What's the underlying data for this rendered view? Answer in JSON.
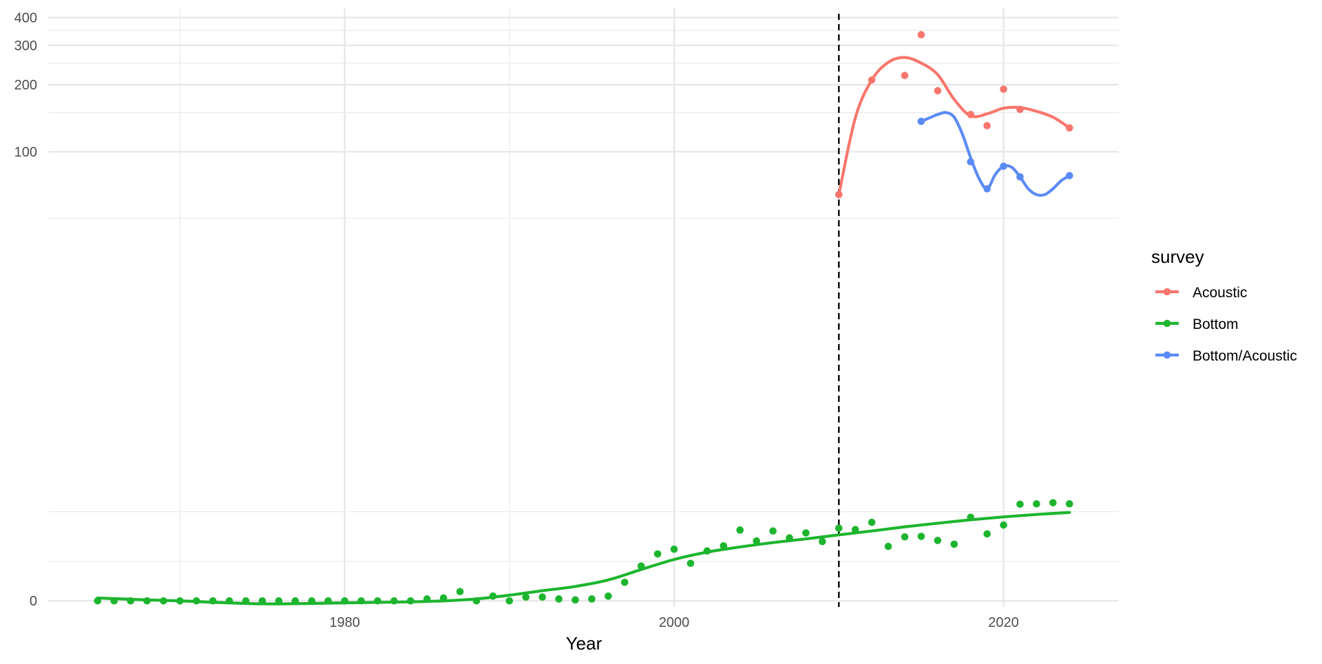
{
  "chart_data": {
    "type": "scatter",
    "title": "",
    "xlabel": "Year",
    "ylabel": "",
    "y_scale": "log1p",
    "x_ticks": [
      1980,
      2000,
      2020
    ],
    "x_tick_labels": [
      "1980",
      "2000",
      "2020"
    ],
    "x_minor_ticks": [
      1970,
      1990,
      2010
    ],
    "y_ticks": [
      0,
      100,
      200,
      300,
      400
    ],
    "y_tick_labels": [
      "0",
      "100",
      "200",
      "300",
      "400"
    ],
    "y_minor_ticks": [
      50,
      150,
      250,
      350
    ],
    "xlim": [
      1962,
      2027
    ],
    "ylim": [
      -0.06,
      440
    ],
    "grid": true,
    "vline": {
      "x": 2010,
      "style": "dashed",
      "color": "#000000"
    },
    "legend": {
      "title": "survey",
      "position": "right",
      "entries": [
        {
          "label": "Acoustic",
          "color": "#F8766D"
        },
        {
          "label": "Bottom",
          "color": "#1DB52E"
        },
        {
          "label": "Bottom/Acoustic",
          "color": "#5B8BF7"
        }
      ]
    },
    "series": [
      {
        "name": "Acoustic",
        "color": "#F8766D",
        "points": [
          [
            2010,
            64
          ],
          [
            2012,
            210
          ],
          [
            2014,
            220
          ],
          [
            2015,
            335
          ],
          [
            2016,
            188
          ],
          [
            2018,
            147
          ],
          [
            2019,
            131
          ],
          [
            2020,
            191
          ],
          [
            2021,
            155
          ],
          [
            2024,
            128
          ]
        ],
        "smooth": [
          [
            2010,
            64
          ],
          [
            2011,
            142
          ],
          [
            2012,
            210
          ],
          [
            2013,
            252
          ],
          [
            2014,
            265
          ],
          [
            2015,
            250
          ],
          [
            2016,
            222
          ],
          [
            2017,
            172
          ],
          [
            2018,
            145
          ],
          [
            2019,
            148
          ],
          [
            2020,
            157
          ],
          [
            2021,
            158
          ],
          [
            2022,
            152
          ],
          [
            2023,
            143
          ],
          [
            2024,
            128
          ]
        ]
      },
      {
        "name": "Bottom",
        "color": "#1DB52E",
        "points": [
          [
            1965,
            0
          ],
          [
            1966,
            0
          ],
          [
            1967,
            0
          ],
          [
            1968,
            0
          ],
          [
            1969,
            0
          ],
          [
            1970,
            0
          ],
          [
            1971,
            0
          ],
          [
            1972,
            0
          ],
          [
            1973,
            0
          ],
          [
            1974,
            0
          ],
          [
            1975,
            0
          ],
          [
            1976,
            0
          ],
          [
            1977,
            0
          ],
          [
            1978,
            0
          ],
          [
            1979,
            0
          ],
          [
            1980,
            0
          ],
          [
            1981,
            0
          ],
          [
            1982,
            0
          ],
          [
            1983,
            0
          ],
          [
            1984,
            0
          ],
          [
            1985,
            0.02
          ],
          [
            1986,
            0.03
          ],
          [
            1987,
            0.1
          ],
          [
            1988,
            0
          ],
          [
            1989,
            0.05
          ],
          [
            1990,
            0
          ],
          [
            1991,
            0.04
          ],
          [
            1992,
            0.04
          ],
          [
            1993,
            0.02
          ],
          [
            1994,
            0.01
          ],
          [
            1995,
            0.02
          ],
          [
            1996,
            0.05
          ],
          [
            1997,
            0.21
          ],
          [
            1998,
            0.43
          ],
          [
            1999,
            0.62
          ],
          [
            2000,
            0.7
          ],
          [
            2001,
            0.47
          ],
          [
            2002,
            0.67
          ],
          [
            2003,
            0.76
          ],
          [
            2004,
            1.07
          ],
          [
            2005,
            0.85
          ],
          [
            2006,
            1.05
          ],
          [
            2007,
            0.91
          ],
          [
            2008,
            1.01
          ],
          [
            2009,
            0.84
          ],
          [
            2010,
            1.11
          ],
          [
            2011,
            1.08
          ],
          [
            2012,
            1.24
          ],
          [
            2013,
            0.75
          ],
          [
            2014,
            0.93
          ],
          [
            2015,
            0.94
          ],
          [
            2016,
            0.86
          ],
          [
            2017,
            0.79
          ],
          [
            2018,
            1.36
          ],
          [
            2019,
            0.99
          ],
          [
            2020,
            1.18
          ],
          [
            2021,
            1.7
          ],
          [
            2022,
            1.71
          ],
          [
            2023,
            1.74
          ],
          [
            2024,
            1.71
          ]
        ],
        "smooth": [
          [
            1965,
            0.03
          ],
          [
            1968,
            0.01
          ],
          [
            1970,
            0
          ],
          [
            1975,
            -0.03
          ],
          [
            1980,
            -0.02
          ],
          [
            1984,
            -0.01
          ],
          [
            1986,
            0
          ],
          [
            1988,
            0.02
          ],
          [
            1990,
            0.06
          ],
          [
            1992,
            0.11
          ],
          [
            1994,
            0.16
          ],
          [
            1996,
            0.24
          ],
          [
            1998,
            0.38
          ],
          [
            2000,
            0.53
          ],
          [
            2002,
            0.65
          ],
          [
            2004,
            0.74
          ],
          [
            2006,
            0.82
          ],
          [
            2008,
            0.89
          ],
          [
            2010,
            0.97
          ],
          [
            2012,
            1.05
          ],
          [
            2014,
            1.14
          ],
          [
            2016,
            1.22
          ],
          [
            2018,
            1.3
          ],
          [
            2020,
            1.37
          ],
          [
            2022,
            1.43
          ],
          [
            2024,
            1.48
          ]
        ]
      },
      {
        "name": "Bottom/Acoustic",
        "color": "#5B8BF7",
        "points": [
          [
            2015,
            137
          ],
          [
            2018,
            90
          ],
          [
            2019,
            68
          ],
          [
            2020,
            86
          ],
          [
            2021,
            77
          ],
          [
            2024,
            78
          ]
        ],
        "smooth": [
          [
            2015,
            137
          ],
          [
            2015.5,
            142
          ],
          [
            2016,
            147
          ],
          [
            2016.5,
            150
          ],
          [
            2017,
            143
          ],
          [
            2017.5,
            120
          ],
          [
            2018,
            94
          ],
          [
            2018.5,
            76
          ],
          [
            2019,
            68
          ],
          [
            2019.5,
            79
          ],
          [
            2020,
            86
          ],
          [
            2020.5,
            85
          ],
          [
            2021,
            77
          ],
          [
            2021.5,
            68
          ],
          [
            2022,
            64
          ],
          [
            2022.5,
            64
          ],
          [
            2023,
            68
          ],
          [
            2023.5,
            74
          ],
          [
            2024,
            78
          ]
        ]
      }
    ]
  }
}
